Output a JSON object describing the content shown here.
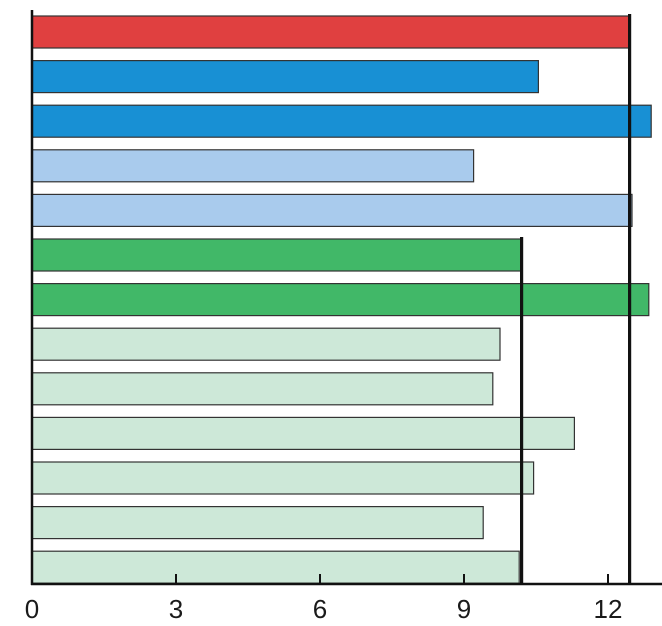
{
  "chart_data": {
    "type": "bar",
    "orientation": "horizontal",
    "title": "",
    "xlabel": "",
    "ylabel": "",
    "xlim": [
      0,
      13.3
    ],
    "x_ticks": [
      0,
      3,
      6,
      9,
      12
    ],
    "x_tick_labels": [
      "0",
      "3",
      "6",
      "9",
      "12"
    ],
    "grid": false,
    "legend": "none",
    "bars": [
      {
        "value": 12.45,
        "color": "#e04040"
      },
      {
        "value": 10.55,
        "color": "#1890d4"
      },
      {
        "value": 12.9,
        "color": "#1890d4"
      },
      {
        "value": 9.2,
        "color": "#a9cbed"
      },
      {
        "value": 12.5,
        "color": "#a9cbed"
      },
      {
        "value": 10.2,
        "color": "#41b868"
      },
      {
        "value": 12.85,
        "color": "#41b868"
      },
      {
        "value": 9.75,
        "color": "#cde8d8"
      },
      {
        "value": 9.6,
        "color": "#cde8d8"
      },
      {
        "value": 11.3,
        "color": "#cde8d8"
      },
      {
        "value": 10.45,
        "color": "#cde8d8"
      },
      {
        "value": 9.4,
        "color": "#cde8d8"
      },
      {
        "value": 10.15,
        "color": "#cde8d8"
      }
    ],
    "reference_lines": [
      {
        "value": 12.45,
        "from_bar": 0,
        "to_bar": 12
      },
      {
        "value": 10.2,
        "from_bar": 5,
        "to_bar": 12
      }
    ]
  }
}
